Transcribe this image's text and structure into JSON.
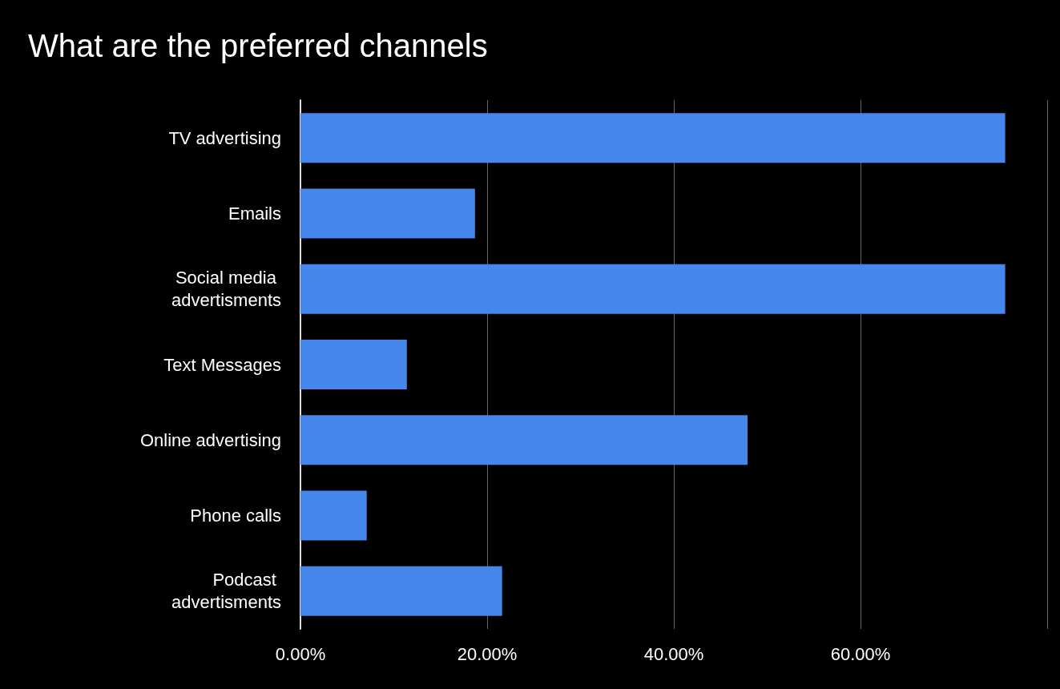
{
  "chart_data": {
    "type": "bar",
    "orientation": "horizontal",
    "title": "What are the preferred channels",
    "categories": [
      "TV advertising",
      "Emails",
      "Social media advertisments",
      "Text Messages",
      "Online advertising",
      "Phone calls",
      "Podcast advertisments"
    ],
    "values": [
      75.5,
      18.7,
      75.5,
      11.4,
      47.9,
      7.1,
      21.6
    ],
    "color": "#4587ec",
    "xlim": [
      0,
      80
    ],
    "xticks": [
      {
        "value": 0,
        "label": "0.00%"
      },
      {
        "value": 20,
        "label": "20.00%"
      },
      {
        "value": 40,
        "label": "40.00%"
      },
      {
        "value": 60,
        "label": "60.00%"
      },
      {
        "value": 80,
        "label": null
      }
    ],
    "grid": "x"
  }
}
